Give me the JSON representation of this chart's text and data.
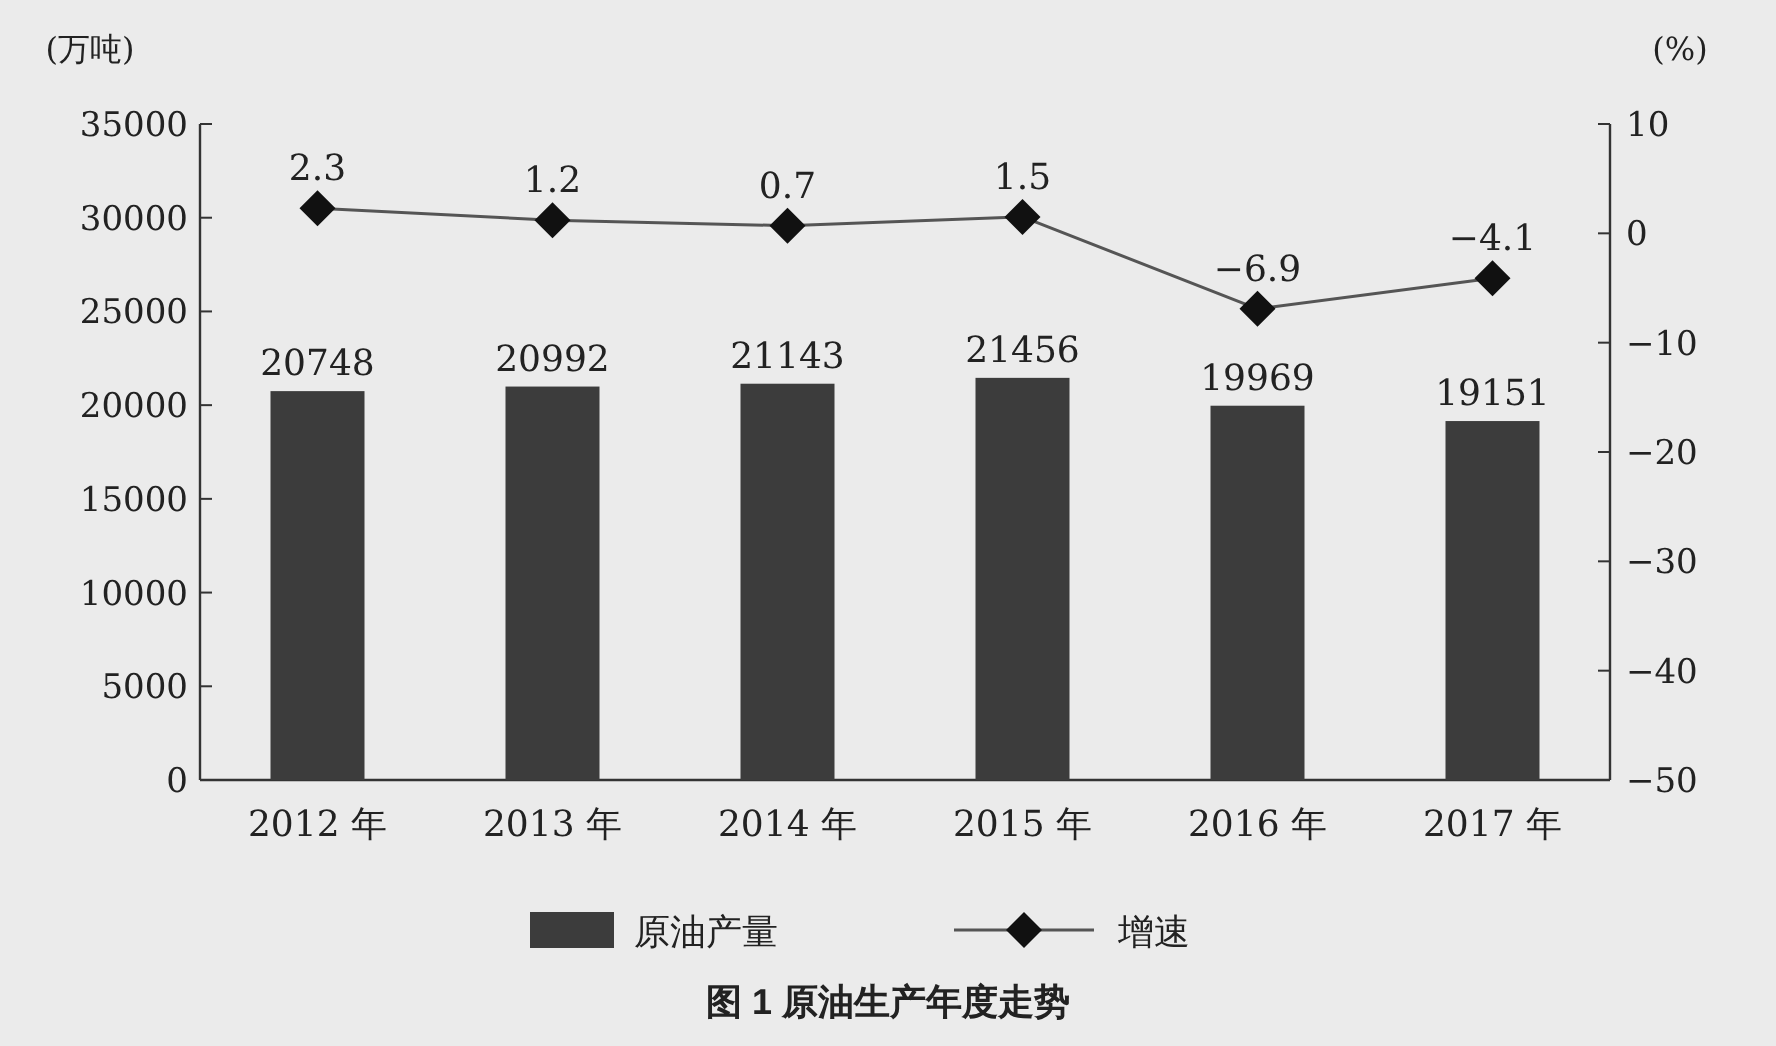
{
  "chart_data": {
    "type": "bar",
    "title": "图 1  原油生产年度走势",
    "ylabel": "(万吨)",
    "y2label": "(%)",
    "categories": [
      "2012 年",
      "2013 年",
      "2014 年",
      "2015 年",
      "2016 年",
      "2017 年"
    ],
    "series": [
      {
        "name": "原油产量",
        "color": "#3c3c3c",
        "values": [
          20748,
          20992,
          21143,
          21456,
          19969,
          19151
        ]
      },
      {
        "name": "增速",
        "type": "line",
        "axis": "y2",
        "color": "#555555",
        "marker": "diamond",
        "values": [
          2.3,
          1.2,
          0.7,
          1.5,
          -6.9,
          -4.1
        ]
      }
    ],
    "ylim": [
      0,
      35000
    ],
    "yticks": [
      0,
      5000,
      10000,
      15000,
      20000,
      25000,
      30000,
      35000
    ],
    "y2lim": [
      -50,
      10
    ],
    "y2ticks": [
      -50,
      -40,
      -30,
      -20,
      -10,
      0,
      10
    ],
    "data_labels": true,
    "legend": "bottom",
    "grid": false
  }
}
